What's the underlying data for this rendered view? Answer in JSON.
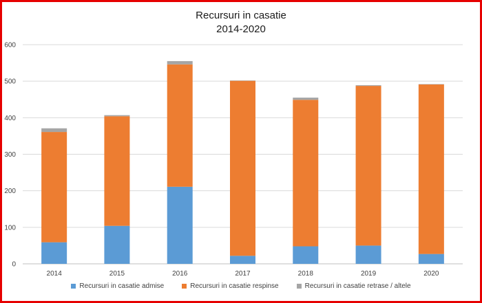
{
  "chart_data": {
    "type": "bar",
    "stacked": true,
    "title": [
      "Recursuri in casatie",
      "2014-2020"
    ],
    "categories": [
      "2014",
      "2015",
      "2016",
      "2017",
      "2018",
      "2019",
      "2020"
    ],
    "ylim": [
      0,
      600
    ],
    "yticks": [
      "0",
      "100",
      "200",
      "300",
      "400",
      "500",
      "600"
    ],
    "grid": true,
    "legend_position": "bottom",
    "series": [
      {
        "name": "Recursuri in casatie admise",
        "color": "#5b9bd5",
        "values": [
          59,
          104,
          211,
          22,
          48,
          50,
          27
        ]
      },
      {
        "name": "Recursuri in casatie respinse",
        "color": "#ed7d31",
        "values": [
          302,
          300,
          335,
          479,
          401,
          437,
          464
        ]
      },
      {
        "name": "Recursuri in casatie retrase / altele",
        "color": "#a5a5a5",
        "values": [
          10,
          3,
          9,
          1,
          6,
          2,
          1
        ]
      }
    ]
  }
}
